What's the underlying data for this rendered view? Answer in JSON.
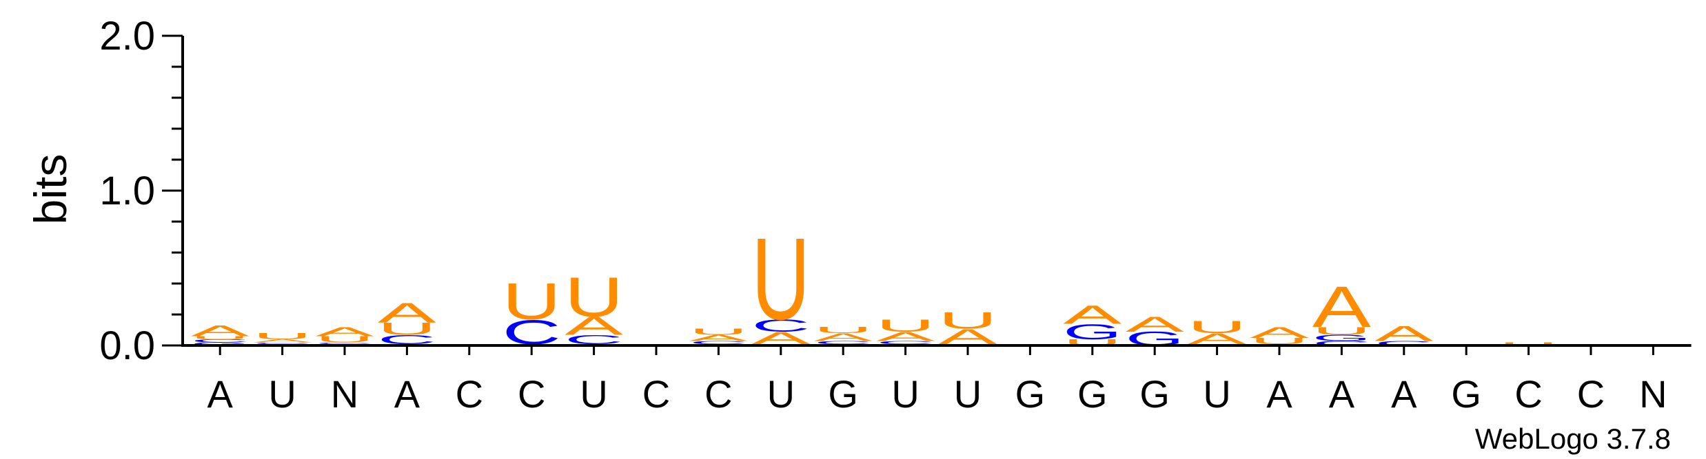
{
  "chart_data": {
    "type": "sequence-logo",
    "title": "",
    "ylabel": "bits",
    "xlabel": "",
    "ylim": [
      0,
      2.0
    ],
    "yticks": [
      {
        "value": 0.0,
        "label": "0.0"
      },
      {
        "value": 1.0,
        "label": "1.0"
      },
      {
        "value": 2.0,
        "label": "2.0"
      }
    ],
    "consensus": [
      "A",
      "U",
      "N",
      "A",
      "C",
      "C",
      "U",
      "C",
      "C",
      "U",
      "G",
      "U",
      "U",
      "G",
      "G",
      "G",
      "U",
      "A",
      "A",
      "A",
      "G",
      "C",
      "C",
      "N"
    ],
    "positions": [
      {
        "stack": [
          {
            "letter": "G",
            "bits": 0.02
          },
          {
            "letter": "C",
            "bits": 0.02
          },
          {
            "letter": "U",
            "bits": 0.02
          },
          {
            "letter": "A",
            "bits": 0.07
          }
        ]
      },
      {
        "stack": [
          {
            "letter": "G",
            "bits": 0.01
          },
          {
            "letter": "C",
            "bits": 0.01
          },
          {
            "letter": "A",
            "bits": 0.02
          },
          {
            "letter": "U",
            "bits": 0.04
          }
        ]
      },
      {
        "stack": [
          {
            "letter": "G",
            "bits": 0.01
          },
          {
            "letter": "C",
            "bits": 0.01
          },
          {
            "letter": "U",
            "bits": 0.04
          },
          {
            "letter": "A",
            "bits": 0.06
          }
        ]
      },
      {
        "stack": [
          {
            "letter": "G",
            "bits": 0.01
          },
          {
            "letter": "C",
            "bits": 0.06
          },
          {
            "letter": "U",
            "bits": 0.08
          },
          {
            "letter": "A",
            "bits": 0.13
          }
        ]
      },
      {
        "stack": []
      },
      {
        "stack": [
          {
            "letter": "A",
            "bits": 0.01
          },
          {
            "letter": "C",
            "bits": 0.16
          },
          {
            "letter": "U",
            "bits": 0.24
          }
        ]
      },
      {
        "stack": [
          {
            "letter": "G",
            "bits": 0.01
          },
          {
            "letter": "C",
            "bits": 0.06
          },
          {
            "letter": "A",
            "bits": 0.12
          },
          {
            "letter": "U",
            "bits": 0.26
          }
        ]
      },
      {
        "stack": []
      },
      {
        "stack": [
          {
            "letter": "G",
            "bits": 0.01
          },
          {
            "letter": "C",
            "bits": 0.02
          },
          {
            "letter": "A",
            "bits": 0.04
          },
          {
            "letter": "U",
            "bits": 0.04
          }
        ]
      },
      {
        "stack": [
          {
            "letter": "G",
            "bits": 0.01
          },
          {
            "letter": "A",
            "bits": 0.08
          },
          {
            "letter": "C",
            "bits": 0.08
          },
          {
            "letter": "U",
            "bits": 0.54
          }
        ]
      },
      {
        "stack": [
          {
            "letter": "G",
            "bits": 0.01
          },
          {
            "letter": "C",
            "bits": 0.02
          },
          {
            "letter": "A",
            "bits": 0.05
          },
          {
            "letter": "U",
            "bits": 0.04
          }
        ]
      },
      {
        "stack": [
          {
            "letter": "G",
            "bits": 0.01
          },
          {
            "letter": "C",
            "bits": 0.02
          },
          {
            "letter": "A",
            "bits": 0.06
          },
          {
            "letter": "U",
            "bits": 0.08
          }
        ]
      },
      {
        "stack": [
          {
            "letter": "G",
            "bits": 0.01
          },
          {
            "letter": "A",
            "bits": 0.1
          },
          {
            "letter": "U",
            "bits": 0.11
          }
        ]
      },
      {
        "stack": []
      },
      {
        "stack": [
          {
            "letter": "U",
            "bits": 0.04
          },
          {
            "letter": "G",
            "bits": 0.1
          },
          {
            "letter": "A",
            "bits": 0.12
          }
        ]
      },
      {
        "stack": [
          {
            "letter": "G",
            "bits": 0.09
          },
          {
            "letter": "A",
            "bits": 0.1
          }
        ]
      },
      {
        "stack": [
          {
            "letter": "G",
            "bits": 0.01
          },
          {
            "letter": "A",
            "bits": 0.07
          },
          {
            "letter": "U",
            "bits": 0.08
          }
        ]
      },
      {
        "stack": [
          {
            "letter": "G",
            "bits": 0.01
          },
          {
            "letter": "U",
            "bits": 0.04
          },
          {
            "letter": "A",
            "bits": 0.07
          }
        ]
      },
      {
        "stack": [
          {
            "letter": "C",
            "bits": 0.03
          },
          {
            "letter": "G",
            "bits": 0.04
          },
          {
            "letter": "U",
            "bits": 0.05
          },
          {
            "letter": "A",
            "bits": 0.27
          }
        ]
      },
      {
        "stack": [
          {
            "letter": "C",
            "bits": 0.03
          },
          {
            "letter": "A",
            "bits": 0.1
          }
        ]
      },
      {
        "stack": []
      },
      {
        "stack": [
          {
            "letter": "U",
            "bits": 0.02
          }
        ]
      },
      {
        "stack": []
      },
      {
        "stack": []
      }
    ],
    "colors": {
      "A": "#ff8c00",
      "U": "#ff8c00",
      "C": "#0000ff",
      "G": "#0000ff"
    },
    "credit": "WebLogo 3.7.8"
  }
}
